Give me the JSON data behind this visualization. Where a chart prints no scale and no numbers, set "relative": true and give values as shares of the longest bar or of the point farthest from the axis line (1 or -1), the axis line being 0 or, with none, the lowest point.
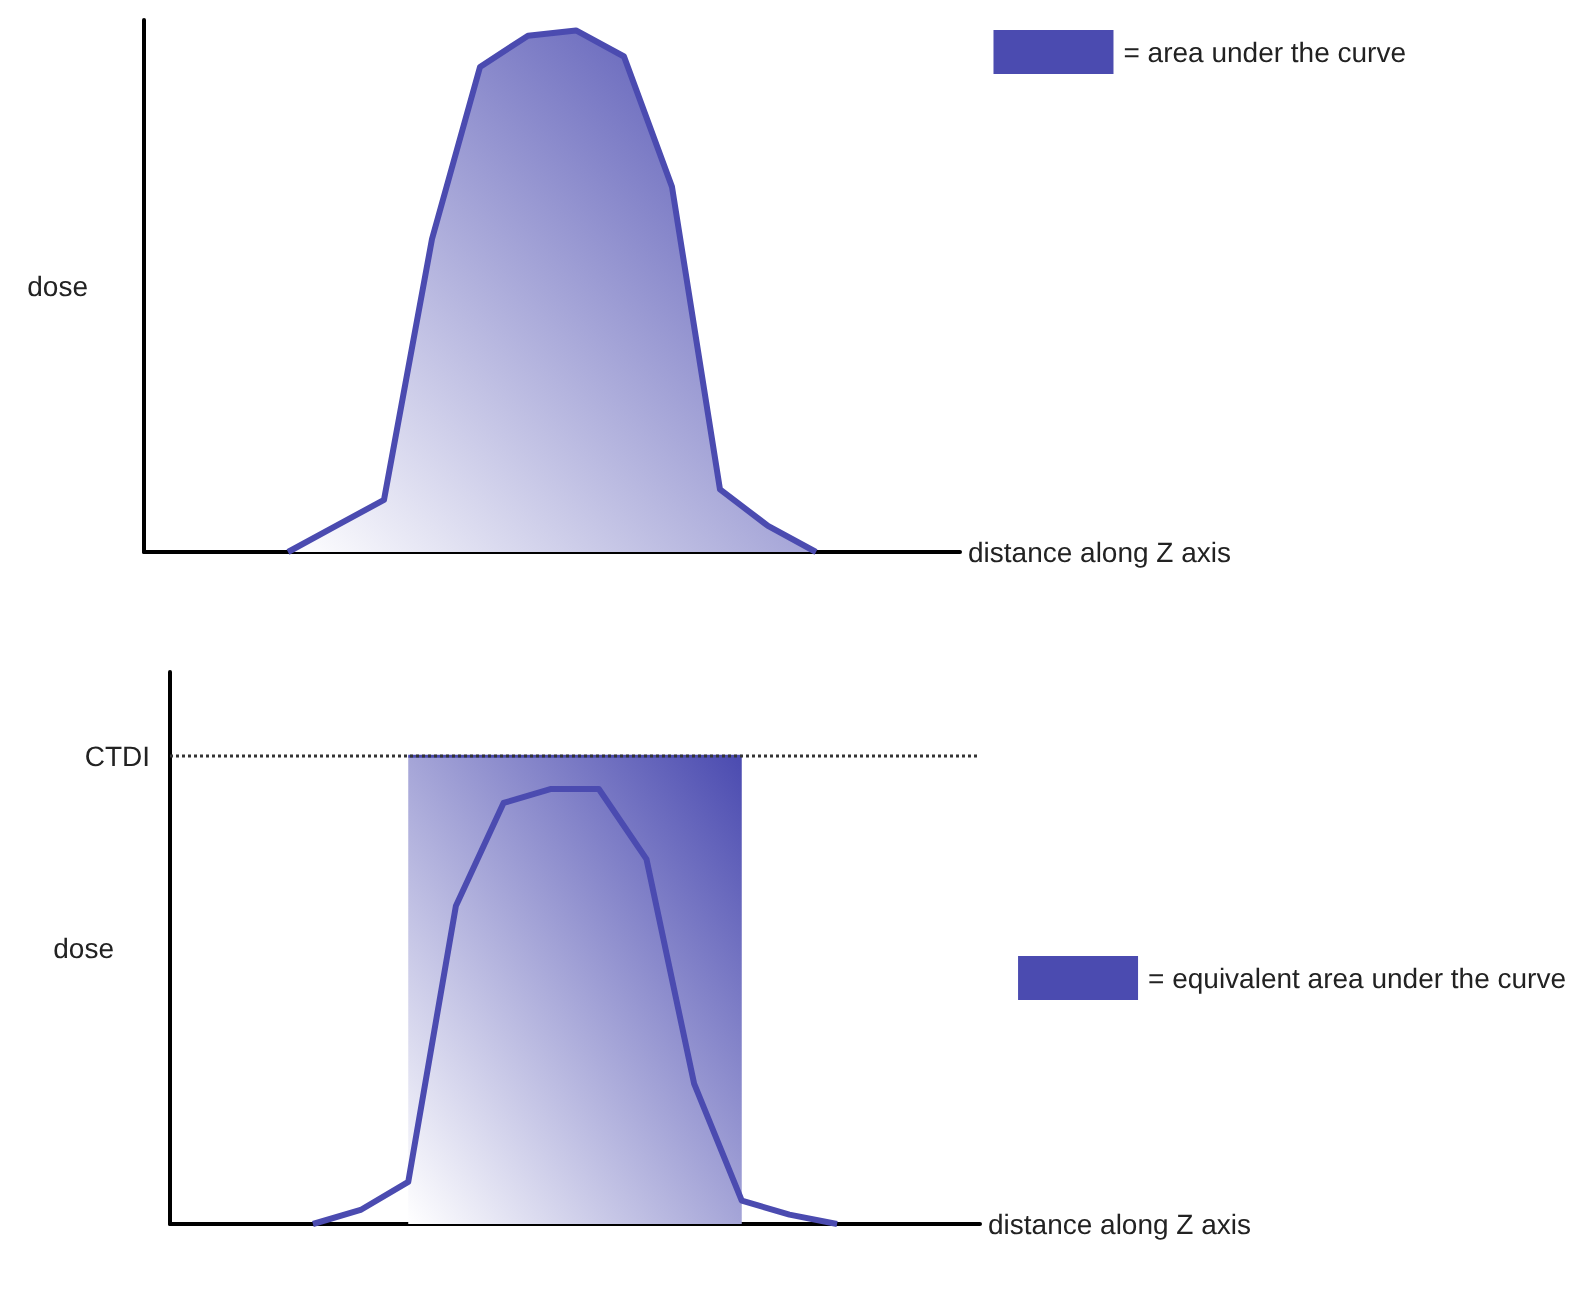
{
  "chart_data": [
    {
      "type": "area",
      "relative": true,
      "xlabel": "distance along Z axis",
      "ylabel": "dose",
      "legend": "top right",
      "grid": false,
      "categories": [
        null,
        null,
        null,
        null,
        null,
        null,
        null,
        null,
        null,
        null,
        null,
        null,
        null,
        null,
        null,
        null,
        null,
        null
      ],
      "series": [
        {
          "name": "= area under the curve",
          "color": "#4b4bb0",
          "values": [
            null,
            null,
            null,
            0,
            0.05,
            0.1,
            0.6,
            0.93,
            0.99,
            1,
            0.95,
            0.7,
            0.12,
            0.05,
            0,
            null,
            null,
            null
          ]
        }
      ]
    },
    {
      "type": "area",
      "relative": true,
      "xlabel": "distance along Z axis",
      "ylabel": "dose",
      "legend": "right",
      "grid": false,
      "categories": [
        null,
        null,
        null,
        null,
        null,
        null,
        null,
        null,
        null,
        null,
        null,
        null,
        null,
        null,
        null,
        null,
        null,
        null
      ],
      "ref_lines": [
        {
          "axis": "y",
          "value": 1,
          "label": "CTDI",
          "line_style": "dotted",
          "color": "#333333"
        }
      ],
      "series": [
        {
          "name": "= equivalent area under the curve",
          "color": "#4b4bb0",
          "values": [
            null,
            null,
            null,
            null,
            null,
            1,
            1,
            1,
            1,
            1,
            1,
            1,
            1,
            null,
            null,
            null,
            null,
            null
          ]
        },
        {
          "type": "line",
          "color": "#4b4bb0",
          "values": [
            null,
            null,
            null,
            0,
            0.03,
            0.09,
            0.68,
            0.9,
            0.93,
            0.93,
            0.78,
            0.3,
            0.05,
            0.02,
            0,
            null,
            null,
            null
          ]
        }
      ]
    }
  ]
}
